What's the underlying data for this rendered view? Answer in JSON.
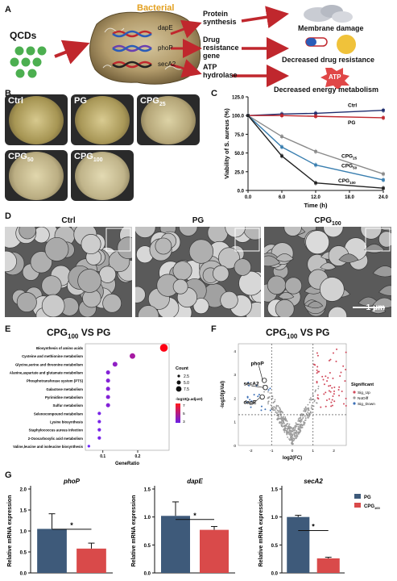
{
  "panels": {
    "A": "A",
    "B": "B",
    "C": "C",
    "D": "D",
    "E": "E",
    "F": "F",
    "G": "G"
  },
  "panelA": {
    "qcds": "QCDs",
    "bacterial": "Bacterial",
    "genes": [
      "dapE",
      "phoP",
      "secA2"
    ],
    "processes": [
      "Protein synthesis",
      "Drug resistance gene",
      "ATP hydrolase"
    ],
    "outcomes": [
      "Membrane damage",
      "Decreased drug resistance",
      "Decreased energy metabolism"
    ],
    "atp": "ATP"
  },
  "panelB": {
    "plates": [
      {
        "label": "Ctrl",
        "sub": ""
      },
      {
        "label": "PG",
        "sub": ""
      },
      {
        "label": "CPG",
        "sub": "25"
      },
      {
        "label": "CPG",
        "sub": "50"
      },
      {
        "label": "CPG",
        "sub": "100"
      }
    ]
  },
  "panelC": {
    "chart_data": {
      "type": "line",
      "xlabel": "Time (h)",
      "ylabel": "Viability of S. aureus (%)",
      "x": [
        0,
        6,
        12,
        24
      ],
      "ylim": [
        0,
        125
      ],
      "xticks": [
        "0.0",
        "6.0",
        "12.0",
        "18.0",
        "24.0"
      ],
      "yticks": [
        "0.0",
        "25.0",
        "50.0",
        "75.0",
        "100.0",
        "125.0"
      ],
      "series": [
        {
          "name": "Ctrl",
          "sub": "",
          "values": [
            100,
            102,
            103,
            107
          ],
          "color": "#1f2d6e"
        },
        {
          "name": "PG",
          "sub": "",
          "values": [
            100,
            100,
            99,
            97
          ],
          "color": "#c0272d"
        },
        {
          "name": "CPG",
          "sub": "25",
          "values": [
            100,
            72,
            52,
            22
          ],
          "color": "#8a8a8a"
        },
        {
          "name": "CPG",
          "sub": "50",
          "values": [
            100,
            58,
            34,
            14
          ],
          "color": "#3a7fb0"
        },
        {
          "name": "CPG",
          "sub": "100",
          "values": [
            100,
            46,
            10,
            3
          ],
          "color": "#222222"
        }
      ]
    }
  },
  "panelD": {
    "labels": [
      {
        "t": "Ctrl",
        "s": ""
      },
      {
        "t": "PG",
        "s": ""
      },
      {
        "t": "CPG",
        "s": "100"
      }
    ],
    "scale": "1 μm"
  },
  "panelE": {
    "title": "CPG",
    "title_sub": "100",
    "title_rest": " VS PG",
    "chart_data": {
      "type": "scatter",
      "xlabel": "GeneRatio",
      "xticks": [
        "0.1",
        "0.2"
      ],
      "categories": [
        "Biosynthesis of amino acids",
        "Cysteine and methionine metabolism",
        "Glycine,serine and threonine metabolism",
        "Alanine,aspartate and glutamate metabolism",
        "Phosphotransferase system (PTS)",
        "Galactose metabolism",
        "Pyrimidine metabolism",
        "Sulfur metabolism",
        "Selenocompound metabolism",
        "Lysine biosynthesis",
        "Staphylococcus aureus infection",
        "2-Oxocarboxylic acid metabolism",
        "Valine,leucine and isoleucine biosynthesis"
      ],
      "gene_ratio": [
        0.275,
        0.185,
        0.135,
        0.115,
        0.115,
        0.115,
        0.115,
        0.115,
        0.09,
        0.09,
        0.09,
        0.09,
        0.06
      ],
      "count": [
        8,
        5,
        4,
        3,
        3,
        3,
        3,
        3,
        2,
        2,
        2,
        2,
        1
      ],
      "neglog10_padj": [
        7.6,
        6.8,
        6.6,
        6.5,
        6.5,
        6.5,
        6.5,
        6.5,
        6.4,
        6.4,
        6.4,
        6.4,
        6.3
      ],
      "legend_count_title": "Count",
      "legend_count": [
        "2.5",
        "5.0",
        "7.5"
      ],
      "legend_color_title": "-log10(p.adjust)",
      "legend_color_ticks": [
        "7",
        "5",
        "3"
      ]
    }
  },
  "panelF": {
    "title": "CPG",
    "title_sub": "100",
    "title_rest": " VS PG",
    "chart_data": {
      "type": "scatter",
      "xlabel": "log2(FC)",
      "ylabel": "-log10(pVal)",
      "xticks": [
        "-2",
        "-1",
        "0",
        "1",
        "2"
      ],
      "yticks": [
        "0",
        "1",
        "2",
        "3",
        "4"
      ],
      "labels": [
        "phoP",
        "secA2",
        "dapE"
      ],
      "legend_title": "Significant",
      "legend": [
        "Sig_Up",
        "NoDiff",
        "Sig_Down"
      ],
      "legend_colors": [
        "#d1495b",
        "#9a9a9a",
        "#3b6fb6"
      ]
    }
  },
  "panelG": {
    "ylabel": "Relative mRNA expression",
    "legend": [
      {
        "t": "PG",
        "s": "",
        "color": "#3e5a7a"
      },
      {
        "t": "CPG",
        "s": "100",
        "color": "#d94a4a"
      }
    ],
    "sig": "*",
    "charts": [
      {
        "gene": "phoP",
        "yticks": [
          "0.0",
          "0.5",
          "1.0",
          "1.5",
          "2.0"
        ],
        "ymax": 2.0,
        "values": [
          1.05,
          0.58
        ],
        "errors": [
          0.36,
          0.13
        ]
      },
      {
        "gene": "dapE",
        "yticks": [
          "0.0",
          "0.5",
          "1.0",
          "1.5"
        ],
        "ymax": 1.5,
        "values": [
          1.02,
          0.77
        ],
        "errors": [
          0.25,
          0.06
        ]
      },
      {
        "gene": "secA2",
        "yticks": [
          "0.0",
          "0.5",
          "1.0",
          "1.5"
        ],
        "ymax": 1.5,
        "values": [
          1.0,
          0.26
        ],
        "errors": [
          0.03,
          0.02
        ]
      }
    ]
  }
}
